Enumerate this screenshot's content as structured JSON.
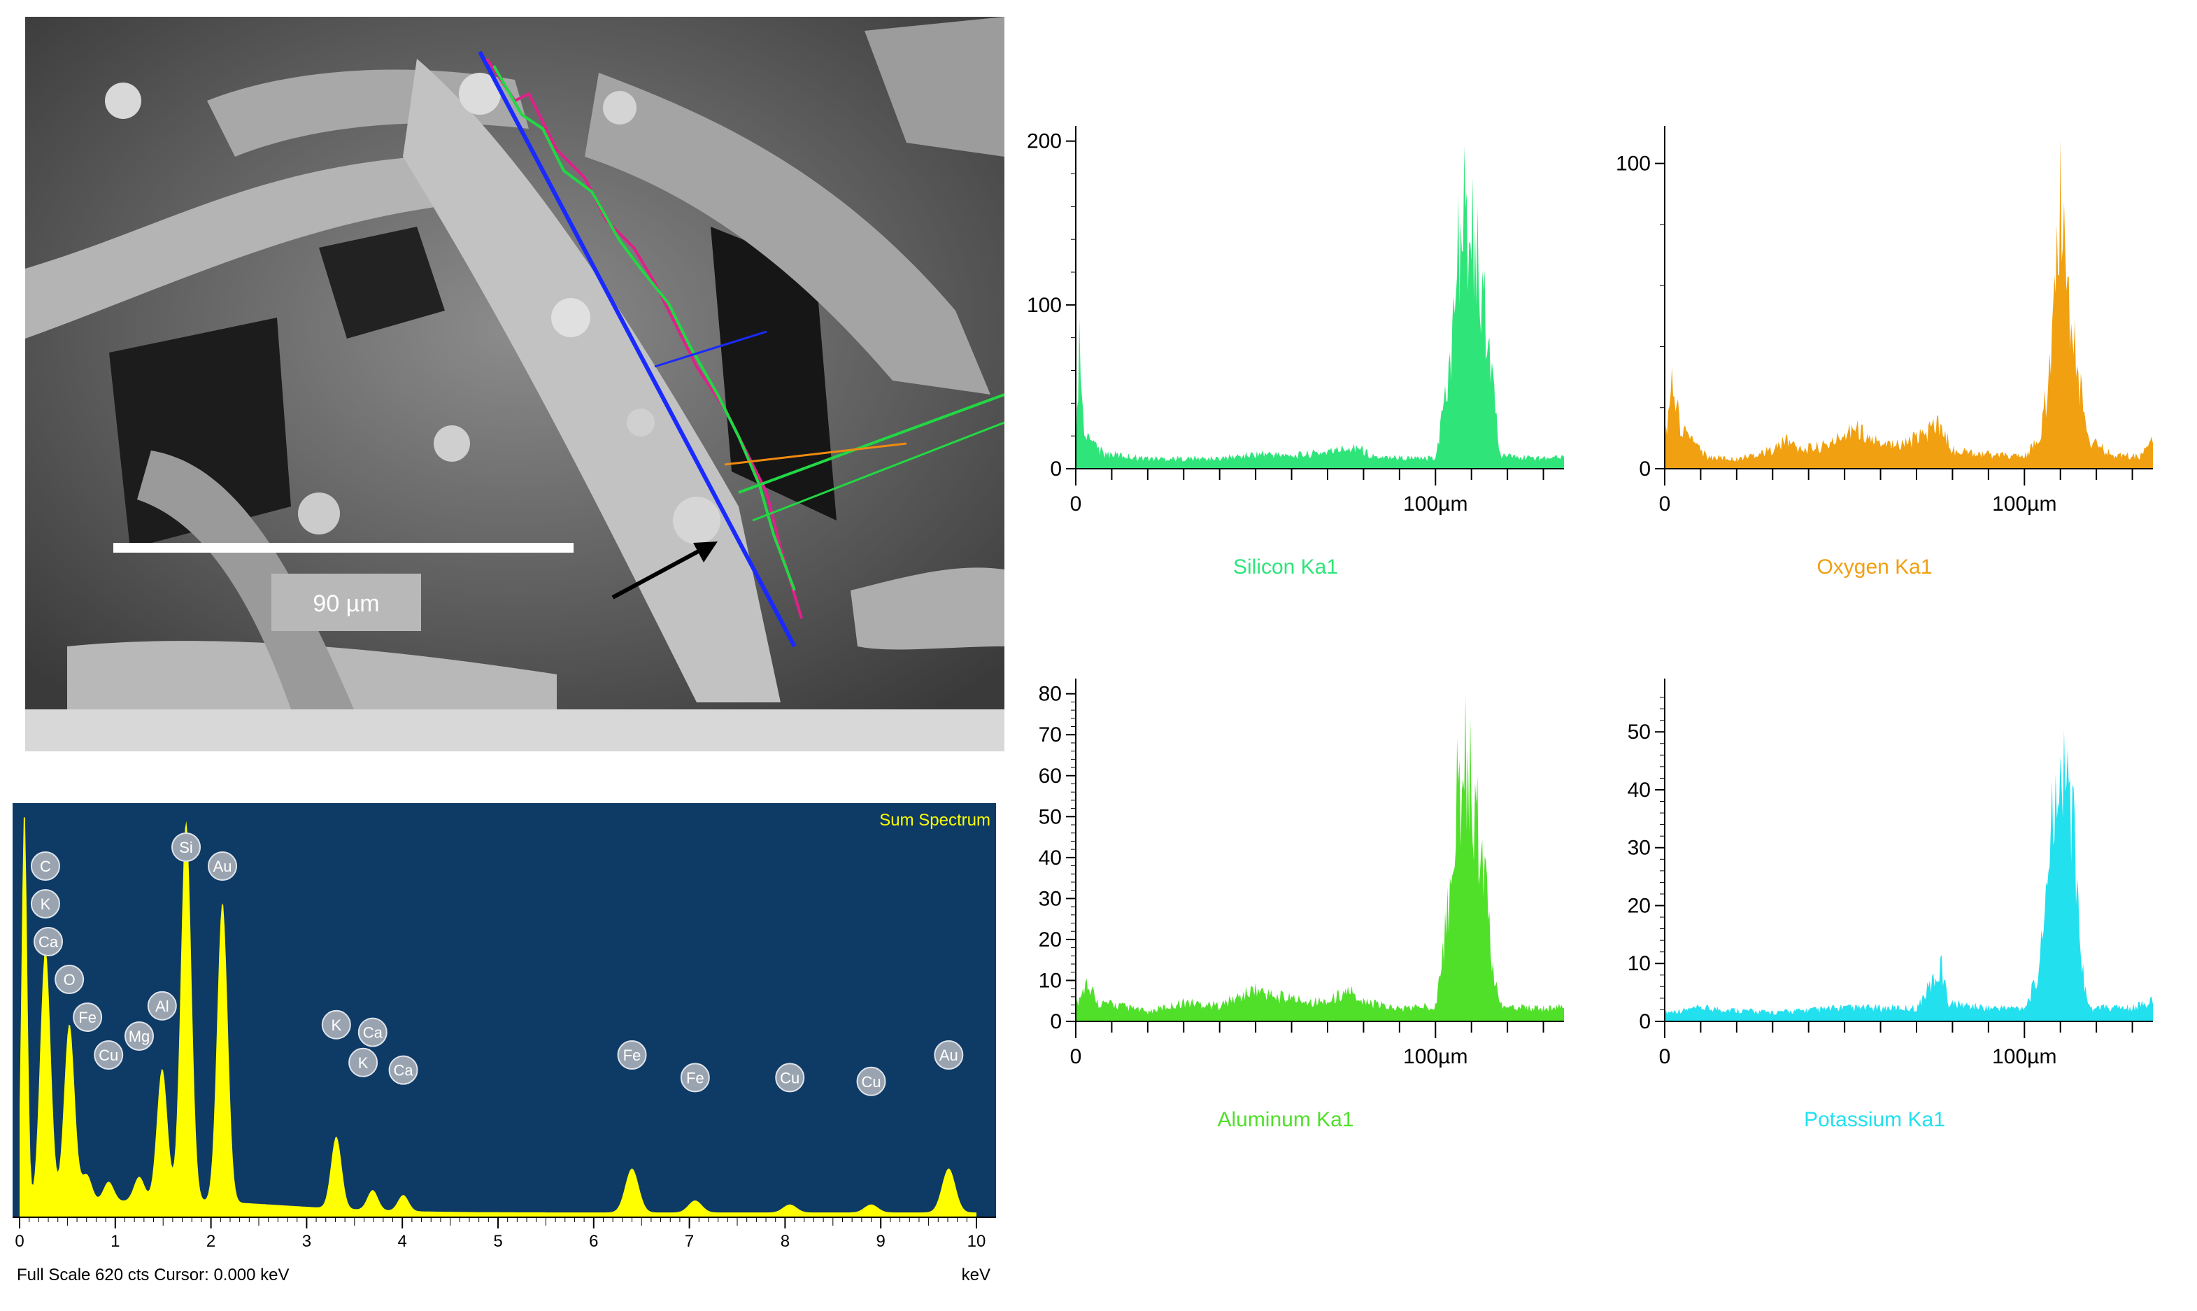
{
  "micrograph": {
    "scale_bar_label": "90 µm"
  },
  "spectrum": {
    "title": "Sum Spectrum",
    "footer_left": "Full Scale 620 cts  Cursor: 0.000 keV",
    "x_unit": "keV",
    "colors": {
      "background": "#0e3a66",
      "fill": "#ffff00",
      "text": "#ffff00"
    },
    "chart_data": {
      "type": "area",
      "xlabel": "keV",
      "xlim": [
        0,
        10
      ],
      "x_ticks": [
        "0",
        "1",
        "2",
        "3",
        "4",
        "5",
        "6",
        "7",
        "8",
        "9",
        "10"
      ],
      "peaks": [
        {
          "x": 0.05,
          "height": 1.0
        },
        {
          "x": 0.27,
          "height": 0.64
        },
        {
          "x": 0.52,
          "height": 0.45
        },
        {
          "x": 0.7,
          "height": 0.07
        },
        {
          "x": 0.93,
          "height": 0.05
        },
        {
          "x": 1.25,
          "height": 0.06
        },
        {
          "x": 1.49,
          "height": 0.33
        },
        {
          "x": 1.74,
          "height": 0.95
        },
        {
          "x": 2.12,
          "height": 0.75
        },
        {
          "x": 3.31,
          "height": 0.18
        },
        {
          "x": 3.69,
          "height": 0.05
        },
        {
          "x": 4.01,
          "height": 0.04
        },
        {
          "x": 6.4,
          "height": 0.11
        },
        {
          "x": 7.06,
          "height": 0.03
        },
        {
          "x": 8.05,
          "height": 0.02
        },
        {
          "x": 8.9,
          "height": 0.02
        },
        {
          "x": 9.71,
          "height": 0.11
        }
      ],
      "element_labels": [
        {
          "label": "C",
          "x": 0.27,
          "row": 0
        },
        {
          "label": "K",
          "x": 0.27,
          "row": 1
        },
        {
          "label": "Ca",
          "x": 0.3,
          "row": 2
        },
        {
          "label": "O",
          "x": 0.52,
          "row": 3
        },
        {
          "label": "Fe",
          "x": 0.71,
          "row": 4
        },
        {
          "label": "Cu",
          "x": 0.93,
          "row": 5
        },
        {
          "label": "Mg",
          "x": 1.25,
          "row": 4.5
        },
        {
          "label": "Al",
          "x": 1.49,
          "row": 3.7
        },
        {
          "label": "Si",
          "x": 1.74,
          "row": -0.5
        },
        {
          "label": "Au",
          "x": 2.12,
          "row": 0
        },
        {
          "label": "K",
          "x": 3.31,
          "row": 4.2
        },
        {
          "label": "Ca",
          "x": 3.69,
          "row": 4.4
        },
        {
          "label": "K",
          "x": 3.59,
          "row": 5.2
        },
        {
          "label": "Ca",
          "x": 4.01,
          "row": 5.4
        },
        {
          "label": "Fe",
          "x": 6.4,
          "row": 5.0
        },
        {
          "label": "Fe",
          "x": 7.06,
          "row": 5.6
        },
        {
          "label": "Cu",
          "x": 8.05,
          "row": 5.6
        },
        {
          "label": "Cu",
          "x": 8.9,
          "row": 5.7
        },
        {
          "label": "Au",
          "x": 9.71,
          "row": 5.0
        }
      ]
    }
  },
  "line_profiles": [
    {
      "label": "Silicon Ka1",
      "color": "#2fe57a",
      "x_tick_labels": [
        "0",
        "100µm"
      ],
      "y_tick_labels": [
        "0",
        "100",
        "200"
      ],
      "chart_data": {
        "type": "area",
        "xlim": [
          0,
          140
        ],
        "ylim": [
          0,
          205
        ],
        "y_ticks": [
          0,
          100,
          200
        ],
        "profile": [
          [
            0,
            5
          ],
          [
            1,
            105
          ],
          [
            2,
            40
          ],
          [
            4,
            20
          ],
          [
            8,
            12
          ],
          [
            20,
            8
          ],
          [
            40,
            8
          ],
          [
            52,
            12
          ],
          [
            60,
            10
          ],
          [
            72,
            14
          ],
          [
            78,
            18
          ],
          [
            82,
            10
          ],
          [
            95,
            8
          ],
          [
            100,
            8
          ],
          [
            104,
            80
          ],
          [
            106,
            170
          ],
          [
            108,
            200
          ],
          [
            110,
            185
          ],
          [
            112,
            160
          ],
          [
            114,
            120
          ],
          [
            116,
            60
          ],
          [
            118,
            10
          ],
          [
            130,
            8
          ],
          [
            138,
            12
          ],
          [
            140,
            10
          ]
        ]
      }
    },
    {
      "label": "Oxygen Ka1",
      "color": "#f0a010",
      "x_tick_labels": [
        "0",
        "100µm"
      ],
      "y_tick_labels": [
        "0",
        "100"
      ],
      "chart_data": {
        "type": "area",
        "xlim": [
          0,
          140
        ],
        "ylim": [
          0,
          110
        ],
        "y_ticks": [
          0,
          100
        ],
        "profile": [
          [
            0,
            10
          ],
          [
            2,
            38
          ],
          [
            4,
            20
          ],
          [
            8,
            10
          ],
          [
            12,
            5
          ],
          [
            20,
            4
          ],
          [
            30,
            8
          ],
          [
            34,
            12
          ],
          [
            38,
            8
          ],
          [
            46,
            10
          ],
          [
            52,
            18
          ],
          [
            58,
            12
          ],
          [
            66,
            10
          ],
          [
            72,
            14
          ],
          [
            76,
            20
          ],
          [
            80,
            8
          ],
          [
            90,
            6
          ],
          [
            100,
            5
          ],
          [
            104,
            12
          ],
          [
            106,
            30
          ],
          [
            108,
            55
          ],
          [
            110,
            110
          ],
          [
            112,
            70
          ],
          [
            114,
            50
          ],
          [
            116,
            30
          ],
          [
            118,
            12
          ],
          [
            124,
            6
          ],
          [
            132,
            5
          ],
          [
            136,
            12
          ],
          [
            140,
            8
          ]
        ]
      }
    },
    {
      "label": "Aluminum Ka1",
      "color": "#50e02a",
      "x_tick_labels": [
        "0",
        "100µm"
      ],
      "y_tick_labels": [
        "0",
        "10",
        "20",
        "30",
        "40",
        "50",
        "60",
        "70",
        "80"
      ],
      "chart_data": {
        "type": "area",
        "xlim": [
          0,
          140
        ],
        "ylim": [
          0,
          82
        ],
        "y_ticks": [
          0,
          10,
          20,
          30,
          40,
          50,
          60,
          70,
          80
        ],
        "profile": [
          [
            0,
            5
          ],
          [
            3,
            12
          ],
          [
            6,
            6
          ],
          [
            12,
            5
          ],
          [
            20,
            3
          ],
          [
            30,
            6
          ],
          [
            40,
            5
          ],
          [
            50,
            10
          ],
          [
            55,
            8
          ],
          [
            60,
            7
          ],
          [
            70,
            6
          ],
          [
            76,
            10
          ],
          [
            80,
            6
          ],
          [
            90,
            4
          ],
          [
            100,
            5
          ],
          [
            103,
            30
          ],
          [
            106,
            70
          ],
          [
            108,
            82
          ],
          [
            110,
            75
          ],
          [
            112,
            60
          ],
          [
            114,
            40
          ],
          [
            116,
            15
          ],
          [
            118,
            5
          ],
          [
            130,
            4
          ],
          [
            140,
            5
          ]
        ]
      }
    },
    {
      "label": "Potassium Ka1",
      "color": "#22e0ee",
      "x_tick_labels": [
        "0",
        "100µm"
      ],
      "y_tick_labels": [
        "0",
        "10",
        "20",
        "30",
        "40",
        "50"
      ],
      "chart_data": {
        "type": "area",
        "xlim": [
          0,
          140
        ],
        "ylim": [
          0,
          58
        ],
        "y_ticks": [
          0,
          10,
          20,
          30,
          40,
          50
        ],
        "profile": [
          [
            0,
            2
          ],
          [
            10,
            3
          ],
          [
            30,
            2
          ],
          [
            50,
            3
          ],
          [
            70,
            3
          ],
          [
            77,
            12
          ],
          [
            79,
            4
          ],
          [
            90,
            3
          ],
          [
            100,
            3
          ],
          [
            104,
            10
          ],
          [
            106,
            30
          ],
          [
            108,
            45
          ],
          [
            110,
            48
          ],
          [
            112,
            57
          ],
          [
            114,
            40
          ],
          [
            116,
            12
          ],
          [
            118,
            3
          ],
          [
            130,
            3
          ],
          [
            138,
            5
          ],
          [
            140,
            3
          ]
        ]
      }
    }
  ]
}
